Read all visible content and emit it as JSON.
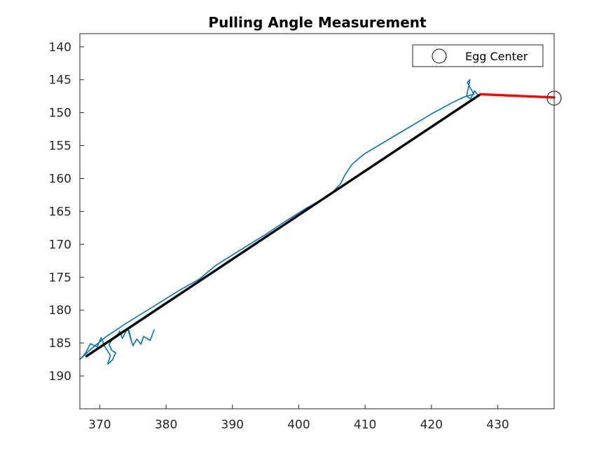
{
  "chart_data": {
    "type": "line",
    "title": "Pulling Angle Measurement",
    "xlabel": "",
    "ylabel": "",
    "xlim": [
      367,
      438.5
    ],
    "ylim": [
      195,
      138
    ],
    "y_reversed": true,
    "grid": false,
    "legend_position": "top-right",
    "x_ticks": [
      370,
      380,
      390,
      400,
      410,
      420,
      430
    ],
    "y_ticks": [
      140,
      145,
      150,
      155,
      160,
      165,
      170,
      175,
      180,
      185,
      190
    ],
    "legend": [
      {
        "label": "Egg Center",
        "marker": "circle"
      }
    ],
    "series": [
      {
        "kind": "trajectory",
        "color": "#0072BD",
        "x": [
          378.2,
          377.6,
          376.6,
          376.2,
          375.6,
          375.0,
          374.6,
          374.4,
          374.8,
          374.2,
          373.8,
          373.4,
          373.0,
          372.8,
          372.0,
          371.4,
          371.8,
          372.4,
          371.9,
          371.2,
          371.6,
          370.8,
          370.2,
          369.6,
          368.6,
          367.8,
          367.0,
          368.6,
          371.0,
          374.0,
          378.0,
          382.0,
          385.0,
          387.5,
          391.0,
          395.0,
          398.0,
          401.0,
          403.5,
          405.0,
          406.3,
          407.0,
          408.0,
          409.0,
          410.0,
          412.0,
          414.0,
          416.0,
          418.0,
          420.0,
          422.0,
          423.5,
          425.0,
          426.4,
          426.0,
          425.4,
          425.8,
          425.3,
          425.9,
          426.5,
          427.0
        ],
        "y": [
          183.0,
          184.6,
          184.0,
          185.2,
          184.4,
          185.4,
          184.1,
          183.1,
          184.8,
          182.8,
          183.5,
          184.3,
          183.2,
          183.6,
          184.3,
          185.2,
          186.1,
          186.5,
          187.6,
          188.2,
          186.9,
          185.6,
          184.2,
          185.6,
          185.1,
          186.6,
          187.5,
          186.0,
          184.0,
          182.0,
          179.5,
          177.0,
          175.3,
          173.2,
          171.0,
          168.5,
          166.5,
          164.6,
          163.2,
          162.2,
          160.8,
          159.4,
          157.9,
          157.0,
          156.2,
          155.0,
          153.8,
          152.6,
          151.4,
          150.2,
          149.1,
          148.3,
          147.6,
          147.2,
          146.5,
          145.4,
          145.0,
          147.5,
          147.9,
          146.7,
          147.3
        ]
      },
      {
        "kind": "fit-line",
        "color": "#000000",
        "x": [
          368.0,
          427.4
        ],
        "y": [
          187.0,
          147.2
        ]
      },
      {
        "kind": "pulling-direction",
        "color": "#FF0000",
        "x": [
          427.4,
          438.5
        ],
        "y": [
          147.2,
          147.7
        ]
      },
      {
        "kind": "egg-center",
        "name": "Egg Center",
        "marker": "circle",
        "x": [
          438.5
        ],
        "y": [
          147.8
        ]
      }
    ]
  }
}
